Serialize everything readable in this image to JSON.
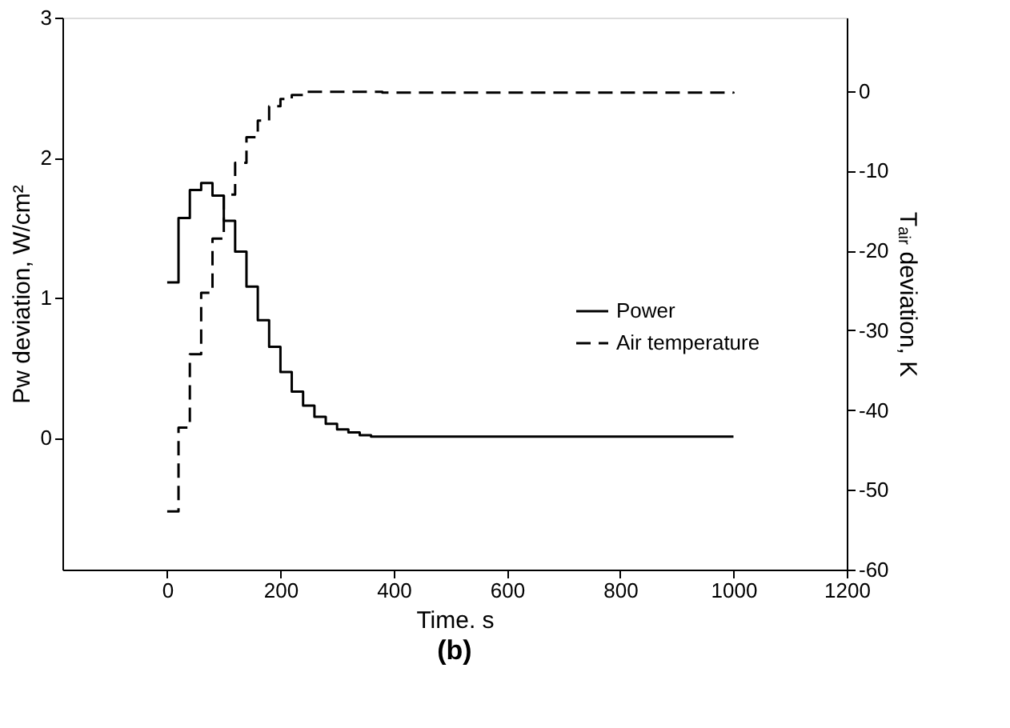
{
  "chart_data": {
    "type": "step",
    "title": "(b)",
    "xlabel": "Time. s",
    "ylabel": "Pw deviation, W/cm²",
    "y2label": "Tₐᵢᵣ deviation, K",
    "x": [
      0,
      20,
      40,
      60,
      80,
      100,
      120,
      140,
      160,
      180,
      200,
      220,
      240,
      260,
      280,
      300,
      320,
      340,
      360,
      380,
      1000
    ],
    "series": [
      {
        "name": "Power",
        "color": "#000000",
        "line_style": "solid",
        "values": [
          1.11,
          1.57,
          1.77,
          1.82,
          1.73,
          1.55,
          1.33,
          1.08,
          0.84,
          0.65,
          0.47,
          0.33,
          0.23,
          0.15,
          0.1,
          0.06,
          0.04,
          0.02,
          0.01,
          0.01,
          0.01
        ]
      },
      {
        "name": "Air temperature",
        "color": "#000000",
        "line_style": "dashed",
        "axis": "y2",
        "values": [
          -52.7,
          -42.2,
          -33,
          -25.3,
          -18.5,
          -13,
          -9,
          -5.8,
          -3.7,
          -1.9,
          -1.0,
          -0.5,
          -0.1,
          -0.1,
          -0.1,
          -0.1,
          -0.1,
          -0.1,
          -0.1,
          -0.2,
          -0.3
        ]
      }
    ],
    "xlim": [
      -185,
      1200
    ],
    "xticks": [
      0,
      200,
      400,
      600,
      800,
      1000,
      1200
    ],
    "ylim": [
      -0.94,
      3
    ],
    "yticks": [
      0,
      1,
      2,
      3
    ],
    "y2lim": [
      -60,
      9.2
    ],
    "y2ticks": [
      0,
      -10,
      -20,
      -30,
      -40,
      -50,
      -60
    ],
    "legend": "right",
    "grid": false
  }
}
